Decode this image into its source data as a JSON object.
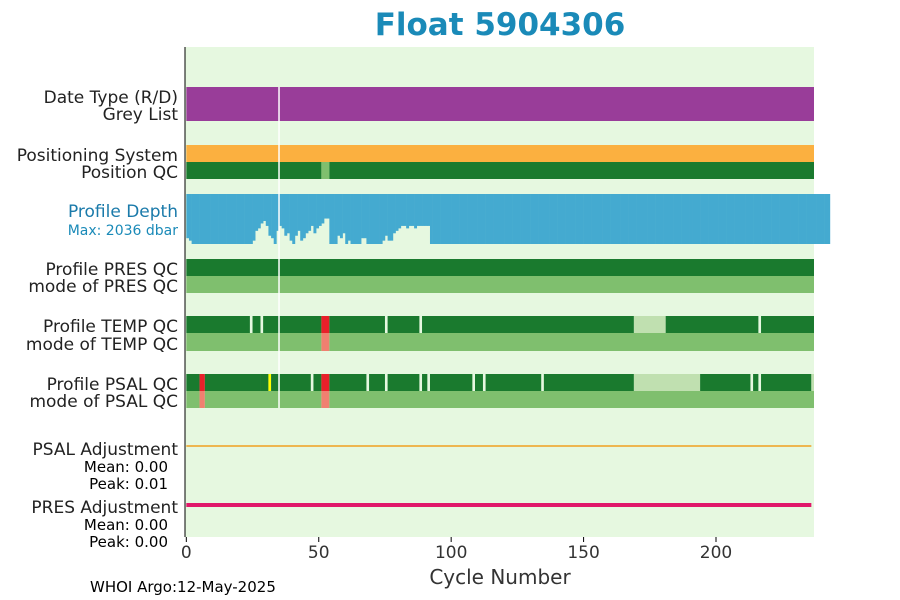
{
  "chart_data": {
    "type": "heatmap",
    "title": "Float 5904306",
    "xlabel": "Cycle Number",
    "xlim": [
      -0.5,
      237
    ],
    "xticks": [
      0,
      50,
      100,
      150,
      200
    ],
    "marker_cycle": 35,
    "rows": [
      {
        "label": "Date Type (R/D)",
        "segments": [
          [
            0,
            237,
            "#993d99"
          ]
        ]
      },
      {
        "label": "Grey List",
        "segments": [
          [
            0,
            237,
            "#993d99"
          ]
        ]
      },
      {
        "label": "Positioning System",
        "segments": [
          [
            0,
            237,
            "#fbb040"
          ]
        ]
      },
      {
        "label": "Position QC",
        "segments": [
          [
            0,
            51,
            "#1a7a2e"
          ],
          [
            51,
            54,
            "#7fbf6e"
          ],
          [
            54,
            237,
            "#1a7a2e"
          ]
        ]
      },
      {
        "label": "Profile PRES QC",
        "segments": [
          [
            0,
            237,
            "#1a7a2e"
          ]
        ]
      },
      {
        "label": "mode of PRES QC",
        "segments": [
          [
            0,
            237,
            "#7fbf6e"
          ]
        ]
      },
      {
        "label": "Profile TEMP QC",
        "segments": [
          [
            0,
            24,
            "#1a7a2e"
          ],
          [
            25,
            28,
            "#1a7a2e"
          ],
          [
            29,
            51,
            "#1a7a2e"
          ],
          [
            51,
            54,
            "#e8202a"
          ],
          [
            54,
            75,
            "#1a7a2e"
          ],
          [
            76,
            88,
            "#1a7a2e"
          ],
          [
            89,
            169,
            "#1a7a2e"
          ],
          [
            169,
            181,
            "#c0e0b0"
          ],
          [
            181,
            216,
            "#1a7a2e"
          ],
          [
            217,
            237,
            "#1a7a2e"
          ]
        ]
      },
      {
        "label": "mode of TEMP QC",
        "segments": [
          [
            0,
            51,
            "#7fbf6e"
          ],
          [
            51,
            54,
            "#f08070"
          ],
          [
            54,
            237,
            "#7fbf6e"
          ]
        ]
      },
      {
        "label": "Profile PSAL QC",
        "segments": [
          [
            0,
            5,
            "#1a7a2e"
          ],
          [
            5,
            7,
            "#e8202a"
          ],
          [
            7,
            28,
            "#1a7a2e"
          ],
          [
            28,
            31,
            "#1a7a2e"
          ],
          [
            31,
            32,
            "#ffff00"
          ],
          [
            32,
            47,
            "#1a7a2e"
          ],
          [
            48,
            51,
            "#1a7a2e"
          ],
          [
            51,
            54,
            "#e8202a"
          ],
          [
            54,
            68,
            "#1a7a2e"
          ],
          [
            69,
            75,
            "#1a7a2e"
          ],
          [
            76,
            88,
            "#1a7a2e"
          ],
          [
            89,
            91,
            "#1a7a2e"
          ],
          [
            92,
            108,
            "#1a7a2e"
          ],
          [
            109,
            112,
            "#1a7a2e"
          ],
          [
            113,
            134,
            "#1a7a2e"
          ],
          [
            135,
            169,
            "#1a7a2e"
          ],
          [
            169,
            194,
            "#c0e0b0"
          ],
          [
            194,
            213,
            "#1a7a2e"
          ],
          [
            214,
            216,
            "#1a7a2e"
          ],
          [
            217,
            236,
            "#1a7a2e"
          ],
          [
            236,
            237,
            "#c0e0b0"
          ]
        ]
      },
      {
        "label": "mode of PSAL QC",
        "segments": [
          [
            0,
            5,
            "#7fbf6e"
          ],
          [
            5,
            7,
            "#f08070"
          ],
          [
            7,
            51,
            "#7fbf6e"
          ],
          [
            51,
            54,
            "#f08070"
          ],
          [
            54,
            237,
            "#7fbf6e"
          ]
        ]
      }
    ],
    "profile_depth": {
      "label": "Profile Depth",
      "max_label": "Max: 2036 dbar",
      "max_dbar": 2036,
      "color": "#44aad0",
      "depths_dbar": [
        1800,
        1900,
        2036,
        2036,
        2036,
        2036,
        2036,
        2036,
        2036,
        2036,
        2036,
        2036,
        2036,
        2036,
        2036,
        2036,
        2036,
        2036,
        2036,
        2036,
        2036,
        2036,
        2036,
        2036,
        2036,
        1900,
        1500,
        1400,
        1200,
        1100,
        1300,
        1700,
        1800,
        2036,
        1500,
        1300,
        1400,
        1700,
        1600,
        1900,
        2036,
        1700,
        1500,
        1900,
        1800,
        1600,
        1500,
        1300,
        1600,
        1400,
        1300,
        1200,
        1000,
        1000,
        2036,
        2036,
        2036,
        1700,
        1800,
        1600,
        2036,
        1900,
        2036,
        2036,
        2036,
        2036,
        1800,
        1800,
        2036,
        2036,
        2036,
        2036,
        2036,
        2036,
        1900,
        1700,
        1900,
        1900,
        1600,
        1500,
        1400,
        1300,
        1300,
        1400,
        1300,
        1300,
        1400,
        1300,
        1300,
        1300,
        1300,
        1300,
        2036,
        2036,
        2036,
        2036,
        2036,
        2036,
        2036,
        2036,
        2036,
        2036,
        2036,
        2036,
        2036,
        2036,
        2036,
        2036,
        2036,
        2036,
        2036,
        2036,
        2036,
        2036,
        2036,
        2036,
        2036,
        2036,
        2036,
        2036,
        2036,
        2036,
        2036,
        2036,
        2036,
        2036,
        2036,
        2036,
        2036,
        2036,
        2036,
        2036,
        2036,
        2036,
        2036,
        2036,
        2036,
        2036,
        2036,
        2036,
        2036,
        2036,
        2036,
        2036,
        2036,
        2036,
        2036,
        2036,
        2036,
        2036,
        2036,
        2036,
        2036,
        2036,
        2036,
        2036,
        2036,
        2036,
        2036,
        2036,
        2036,
        2036,
        2036,
        2036,
        2036,
        2036,
        2036,
        2036,
        2036,
        2036,
        2036,
        2036,
        2036,
        2036,
        2036,
        2036,
        2036,
        2036,
        2036,
        2036,
        2036,
        2036,
        2036,
        2036,
        2036,
        2036,
        2036,
        2036,
        2036,
        2036,
        2036,
        2036,
        2036,
        2036,
        2036,
        2036,
        2036,
        2036,
        2036,
        2036,
        2036,
        2036,
        2036,
        2036,
        2036,
        2036,
        2036,
        2036,
        2036,
        2036,
        2036,
        2036,
        2036,
        2036,
        2036,
        2036,
        2036,
        2036,
        2036,
        2036,
        2036,
        2036,
        2036,
        2036,
        2036,
        2036,
        2036,
        2036,
        2036,
        2036,
        2036,
        2036,
        2036,
        2036,
        2036,
        2036,
        2036,
        2036,
        2036,
        2036,
        2036,
        2036,
        2036
      ]
    },
    "adjustments": [
      {
        "label": "PSAL Adjustment",
        "mean": "Mean: 0.00",
        "peak": "Peak: 0.01",
        "color": "#f0a020"
      },
      {
        "label": "PRES Adjustment",
        "mean": "Mean: 0.00",
        "peak": "Peak: 0.00",
        "color": "#e0186a"
      }
    ]
  },
  "footer": "WHOI Argo:12-May-2025"
}
